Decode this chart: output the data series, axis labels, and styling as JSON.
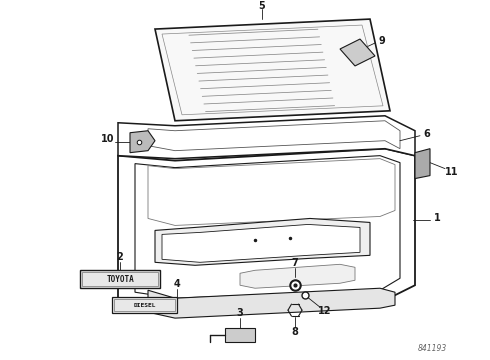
{
  "background_color": "#ffffff",
  "line_color": "#1a1a1a",
  "label_fontsize": 7.0,
  "watermark": "841193",
  "watermark_fontsize": 5.5,
  "toyota_text": "TOYOTA",
  "diesel_text": "DIESEL"
}
